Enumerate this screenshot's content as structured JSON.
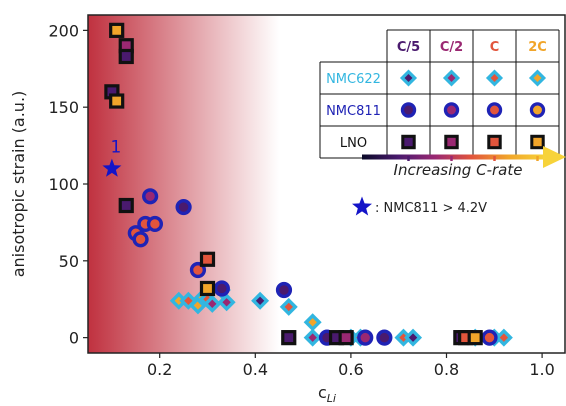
{
  "chart_data": {
    "type": "scatter",
    "xlabel": "c",
    "xlabel_sub": "Li",
    "ylabel": "anisotropic strain (a.u.)",
    "xlim": [
      0.05,
      1.05
    ],
    "ylim": [
      -10,
      210
    ],
    "xticks": [
      0.2,
      0.4,
      0.6,
      0.8,
      1.0
    ],
    "xtick_labels": [
      "0.2",
      "0.4",
      "0.6",
      "0.8",
      "1.0"
    ],
    "yticks": [
      0,
      50,
      100,
      150,
      200
    ],
    "ytick_labels": [
      "0",
      "50",
      "100",
      "150",
      "200"
    ],
    "background_gradient": {
      "color": "#c0313f",
      "from_x": 0.05,
      "to_x": 0.45
    },
    "rates": [
      {
        "label": "C/5",
        "color": "#4a1a6e"
      },
      {
        "label": "C/2",
        "color": "#9a2872"
      },
      {
        "label": "C",
        "color": "#e2553c"
      },
      {
        "label": "2C",
        "color": "#f1a52a"
      }
    ],
    "materials": [
      {
        "name": "NMC622",
        "marker": "diamond",
        "edge": "#32b6e0",
        "label_color": "#32b6e0"
      },
      {
        "name": "NMC811",
        "marker": "circle",
        "edge": "#1f23b5",
        "label_color": "#1f23b5"
      },
      {
        "name": "LNO",
        "marker": "square",
        "edge": "#111111",
        "label_color": "#111111"
      }
    ],
    "series": [
      {
        "name": "NMC622",
        "marker": "diamond",
        "edge": "#32b6e0",
        "points": [
          {
            "x": 0.24,
            "y": 24,
            "rate": "2C"
          },
          {
            "x": 0.26,
            "y": 24,
            "rate": "C"
          },
          {
            "x": 0.28,
            "y": 21,
            "rate": "2C"
          },
          {
            "x": 0.29,
            "y": 26,
            "rate": "2C"
          },
          {
            "x": 0.3,
            "y": 25,
            "rate": "C"
          },
          {
            "x": 0.31,
            "y": 22,
            "rate": "C/2"
          },
          {
            "x": 0.33,
            "y": 31,
            "rate": "C/2"
          },
          {
            "x": 0.34,
            "y": 23,
            "rate": "C/2"
          },
          {
            "x": 0.41,
            "y": 24,
            "rate": "C/5"
          },
          {
            "x": 0.47,
            "y": 20,
            "rate": "C"
          },
          {
            "x": 0.52,
            "y": 10,
            "rate": "2C"
          },
          {
            "x": 0.52,
            "y": 0,
            "rate": "C/2"
          },
          {
            "x": 0.6,
            "y": 0,
            "rate": "C/5"
          },
          {
            "x": 0.62,
            "y": 0,
            "rate": "C"
          },
          {
            "x": 0.71,
            "y": 0,
            "rate": "C"
          },
          {
            "x": 0.73,
            "y": 0,
            "rate": "C/5"
          },
          {
            "x": 0.86,
            "y": 0,
            "rate": "C/2"
          },
          {
            "x": 0.9,
            "y": 0,
            "rate": "2C"
          },
          {
            "x": 0.92,
            "y": 0,
            "rate": "C"
          }
        ]
      },
      {
        "name": "NMC811",
        "marker": "circle",
        "edge": "#1f23b5",
        "points": [
          {
            "x": 0.15,
            "y": 68,
            "rate": "C"
          },
          {
            "x": 0.16,
            "y": 64,
            "rate": "C"
          },
          {
            "x": 0.17,
            "y": 74,
            "rate": "C"
          },
          {
            "x": 0.18,
            "y": 92,
            "rate": "C/2"
          },
          {
            "x": 0.19,
            "y": 74,
            "rate": "C"
          },
          {
            "x": 0.25,
            "y": 85,
            "rate": "C/5"
          },
          {
            "x": 0.28,
            "y": 44,
            "rate": "C"
          },
          {
            "x": 0.33,
            "y": 32,
            "rate": "C/5"
          },
          {
            "x": 0.46,
            "y": 31,
            "rate": "C/5"
          },
          {
            "x": 0.55,
            "y": 0,
            "rate": "C/5"
          },
          {
            "x": 0.63,
            "y": 0,
            "rate": "C/2"
          },
          {
            "x": 0.67,
            "y": 0,
            "rate": "C/5"
          },
          {
            "x": 0.89,
            "y": 0,
            "rate": "C"
          }
        ]
      },
      {
        "name": "LNO",
        "marker": "square",
        "edge": "#111111",
        "points": [
          {
            "x": 0.11,
            "y": 200,
            "rate": "2C"
          },
          {
            "x": 0.13,
            "y": 190,
            "rate": "C/2"
          },
          {
            "x": 0.13,
            "y": 183,
            "rate": "C/5"
          },
          {
            "x": 0.1,
            "y": 160,
            "rate": "C/5"
          },
          {
            "x": 0.11,
            "y": 154,
            "rate": "2C"
          },
          {
            "x": 0.13,
            "y": 86,
            "rate": "C/5"
          },
          {
            "x": 0.3,
            "y": 51,
            "rate": "C"
          },
          {
            "x": 0.3,
            "y": 32,
            "rate": "2C"
          },
          {
            "x": 0.47,
            "y": 0,
            "rate": "C/5"
          },
          {
            "x": 0.57,
            "y": 0,
            "rate": "C/5"
          },
          {
            "x": 0.59,
            "y": 0,
            "rate": "C/2"
          },
          {
            "x": 0.83,
            "y": 0,
            "rate": "C/5"
          },
          {
            "x": 0.84,
            "y": 0,
            "rate": "C"
          },
          {
            "x": 0.86,
            "y": 0,
            "rate": "2C"
          }
        ]
      },
      {
        "name": "NMC811 > 4.2V",
        "marker": "star",
        "edge": "#1414c8",
        "points": [
          {
            "x": 0.1,
            "y": 110,
            "label": "1"
          }
        ]
      }
    ],
    "legend_table_position": "top-right",
    "crate_arrow_label": "Increasing C-rate",
    "crate_arrow_colors": [
      "#0a0a28",
      "#4a1a6e",
      "#9a2872",
      "#e2553c",
      "#f1a52a",
      "#f7d33a"
    ],
    "star_legend": {
      "text": ": NMC811 > 4.2V",
      "color": "#1414c8"
    }
  }
}
